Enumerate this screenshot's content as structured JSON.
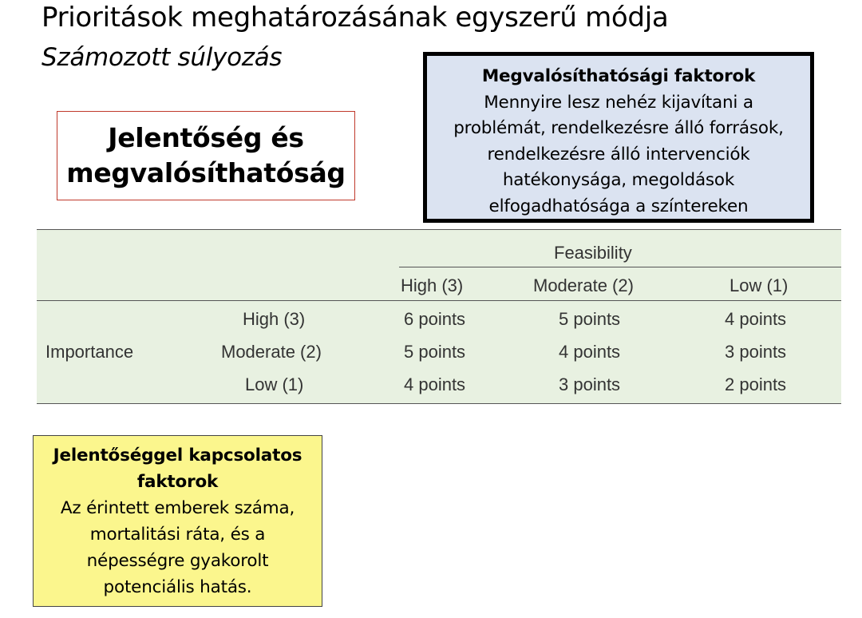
{
  "title": "Prioritások meghatározásának egyszerű módja",
  "subtitle": "Számozott súlyozás",
  "red_box": {
    "line1": "Jelentőség és",
    "line2": "megvalósíthatóság"
  },
  "blue_box": {
    "heading": "Megvalósíthatósági faktorok",
    "lines": [
      "Mennyire lesz nehéz kijavítani a",
      "problémát, rendelkezésre álló források,",
      "rendelkezésre álló intervenciók",
      "hatékonysága, megoldások",
      "elfogadhatósága a színtereken"
    ]
  },
  "table": {
    "feasibility_label": "Feasibility",
    "importance_label": "Importance",
    "columns": [
      "High (3)",
      "Moderate (2)",
      "Low (1)"
    ],
    "rows": [
      {
        "label": "High (3)",
        "cells": [
          "6 points",
          "5 points",
          "4 points"
        ]
      },
      {
        "label": "Moderate (2)",
        "cells": [
          "5 points",
          "4 points",
          "3 points"
        ]
      },
      {
        "label": "Low (1)",
        "cells": [
          "4 points",
          "3 points",
          "2 points"
        ]
      }
    ]
  },
  "yellow_box": {
    "heading_lines": [
      "Jelentőséggel kapcsolatos",
      "faktorok"
    ],
    "lines": [
      "Az érintett emberek száma,",
      "mortalitási ráta, és a",
      "népességre gyakorolt",
      "potenciális hatás."
    ]
  }
}
